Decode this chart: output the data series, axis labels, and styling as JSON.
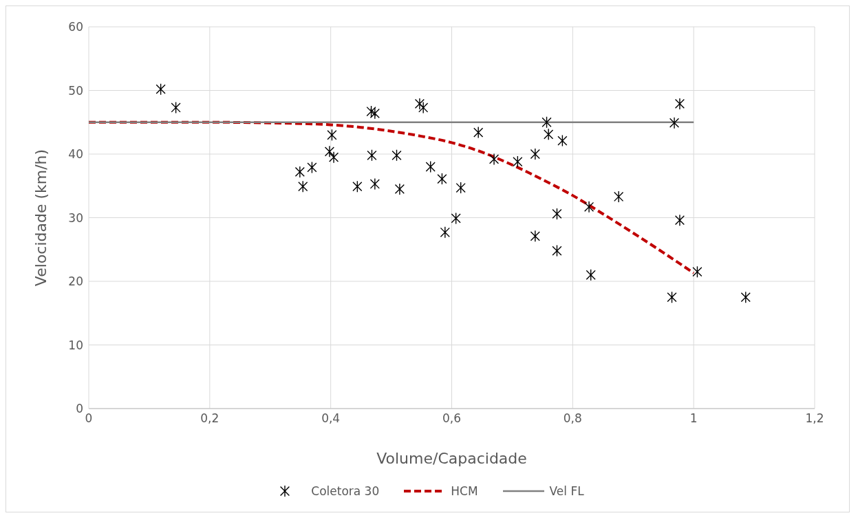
{
  "chart_data": {
    "type": "scatter",
    "xlabel": "Volume/Capacidade",
    "ylabel": "Velocidade (km/h)",
    "xlim": [
      0,
      1.2
    ],
    "xticks": [
      0,
      {
        "value": 0.2,
        "label": "0,2"
      },
      {
        "value": 0.4,
        "label": "0,4"
      },
      {
        "value": 0.6,
        "label": "0,6"
      },
      {
        "value": 0.8,
        "label": "0,8"
      },
      1,
      {
        "value": 1.2,
        "label": "1,2"
      }
    ],
    "ylim": [
      0,
      60
    ],
    "yticks": [
      0,
      10,
      20,
      30,
      40,
      50,
      60
    ],
    "grid": true,
    "legend": "bottom",
    "series": [
      {
        "name": "Coletora 30",
        "marker": "cross",
        "color": "#000000",
        "x": [
          0.119,
          0.144,
          0.349,
          0.369,
          0.354,
          0.402,
          0.398,
          0.405,
          0.467,
          0.473,
          0.468,
          0.444,
          0.473,
          0.509,
          0.514,
          0.547,
          0.553,
          0.565,
          0.584,
          0.607,
          0.589,
          0.615,
          0.644,
          0.67,
          0.709,
          0.738,
          0.738,
          0.757,
          0.76,
          0.783,
          0.774,
          0.774,
          0.827,
          0.83,
          0.876,
          0.968,
          0.977,
          0.977,
          0.964,
          1.006,
          1.086
        ],
        "values": [
          50.2,
          47.3,
          37.2,
          37.9,
          34.9,
          43.0,
          40.4,
          39.5,
          46.7,
          46.4,
          39.8,
          34.9,
          35.3,
          39.8,
          34.5,
          47.9,
          47.3,
          38.0,
          36.1,
          29.9,
          27.7,
          34.7,
          43.4,
          39.2,
          38.8,
          40.0,
          27.1,
          45.0,
          43.1,
          42.1,
          30.6,
          24.8,
          31.7,
          21.0,
          33.3,
          44.9,
          47.9,
          29.6,
          17.5,
          21.5,
          17.5
        ]
      },
      {
        "name": "HCM",
        "type": "line",
        "marker": "none",
        "line_style": "dashed",
        "color": "#c00000",
        "x": [
          0,
          0.1,
          0.2,
          0.3,
          0.4,
          0.45,
          0.5,
          0.55,
          0.6,
          0.65,
          0.7,
          0.75,
          0.8,
          0.85,
          0.9,
          0.95,
          1.0
        ],
        "values": [
          45,
          45,
          45,
          44.9,
          44.6,
          44.2,
          43.6,
          42.8,
          41.8,
          40.3,
          38.3,
          36.0,
          33.5,
          30.6,
          27.6,
          24.5,
          21.3
        ]
      },
      {
        "name": "Vel FL",
        "type": "line",
        "marker": "none",
        "line_style": "solid",
        "color": "#808080",
        "x": [
          0,
          1
        ],
        "values": [
          45,
          45
        ]
      }
    ]
  }
}
